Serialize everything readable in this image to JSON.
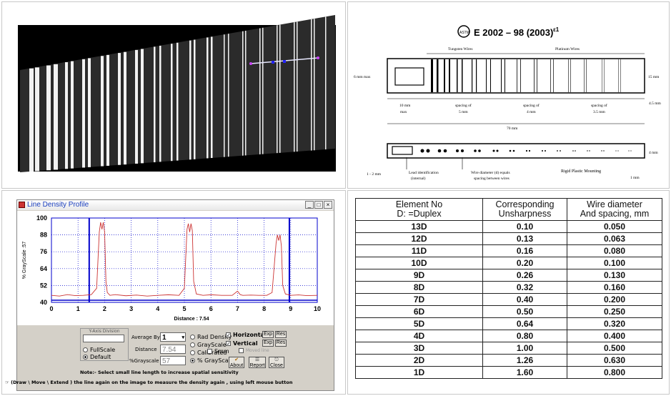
{
  "standard": {
    "title": "E 2002 – 98 (2003)",
    "superscript": "ε1",
    "logo_text": "ASTM",
    "labels": {
      "tungsten": "Tungsten Wires",
      "platinum": "Platinum Wires",
      "six_mm": "6 mm max",
      "fifteen_mm": "15 mm",
      "four5_mm": "4.5 mm",
      "ten_mm": "10 mm",
      "ten_mm_max": "max",
      "spacing1a": "spacing of",
      "spacing1b": "5 mm",
      "spacing2a": "spacing of",
      "spacing2b": "4 mm",
      "spacing3a": "spacing of",
      "spacing3b": "3.5 mm",
      "seventy_mm": "70 mm",
      "four_mm": "4 mm",
      "one2_mm": "1 - 2 mm",
      "lead_id": "Lead identification",
      "lead_id2": "(internal)",
      "wire_diam": "Wire diameter (d) equals",
      "wire_diam2": "spacing between wires",
      "rigid": "Rigid Plastic Mounting",
      "one_mm": "1 mm"
    }
  },
  "density_window": {
    "title": "Line Density Profile",
    "min_btn": "_",
    "max_btn": "□",
    "close_btn": "×",
    "y_axis_label": "% GrayScale :57",
    "distance_label": "Distance : 7.54",
    "yaxis_division_label": "Y-Axis Division",
    "average_by_label": "Average By",
    "average_by_value": "1",
    "distance_field_label": "Distance",
    "distance_value": "7.54",
    "grayscale_field_label": "%Grayscale",
    "grayscale_value": "57",
    "fullscale": "FullScale",
    "default": "Default",
    "rad_density": "Rad Density",
    "grayscale_opt": "GrayScale",
    "calibrated": "Calibrated",
    "pct_grayscale": "% GrayScale",
    "horizontal": "Horizontal",
    "vertical": "Vertical",
    "smm": "Smm",
    "moved_line": "Moved line",
    "exp": "Exp",
    "res": "Res",
    "about": "About",
    "report": "Report",
    "close": "Close",
    "note": "Note:- Select small line length to increase spatial sensitivity",
    "status": "(Draw \\ Move \\ Extend )  the line again on the image to measure the density again , using left mouse button"
  },
  "chart_data": {
    "type": "line",
    "title": "",
    "xlabel": "Distance : 7.54",
    "ylabel": "% GrayScale :57",
    "xlim": [
      0,
      10
    ],
    "ylim": [
      40,
      100
    ],
    "xticks": [
      "0",
      "1",
      "2",
      "3",
      "4",
      "5",
      "6",
      "7",
      "8",
      "9",
      "10"
    ],
    "yticks": [
      "40",
      "52",
      "64",
      "76",
      "88",
      "100"
    ],
    "markers_x": [
      1.42,
      8.95
    ],
    "baseline_y": 41.5,
    "series": [
      {
        "x": [
          0,
          0.3,
          0.6,
          0.9,
          1.2,
          1.5,
          1.7,
          1.8,
          1.85,
          1.9,
          1.95,
          2.0,
          2.05,
          2.1,
          2.2,
          2.4,
          2.8,
          3.2,
          3.6,
          4.0,
          4.4,
          4.8,
          5.0,
          5.1,
          5.15,
          5.2,
          5.25,
          5.3,
          5.35,
          5.45,
          5.7,
          6.0,
          6.4,
          6.8,
          7.0,
          7.1,
          7.2,
          7.5,
          7.8,
          8.1,
          8.3,
          8.45,
          8.5,
          8.55,
          8.6,
          8.65,
          8.7,
          8.8,
          9.0,
          9.3,
          9.6,
          10
        ],
        "y": [
          45,
          44.5,
          45.5,
          44.8,
          45,
          45.5,
          50,
          90,
          97,
          92,
          97,
          90,
          55,
          47,
          45,
          45.5,
          44.7,
          45.2,
          44.5,
          45,
          45.4,
          45,
          50,
          92,
          96,
          90,
          96,
          91,
          55,
          46,
          45,
          45.4,
          45,
          45,
          48,
          45.5,
          45,
          45.2,
          45,
          45,
          47,
          82,
          88,
          84,
          88,
          80,
          52,
          46,
          45,
          45.3,
          44.8,
          45
        ]
      }
    ]
  },
  "table": {
    "headers": [
      [
        "Element No",
        "D: =Duplex"
      ],
      [
        "Corresponding",
        "Unsharpness"
      ],
      [
        "Wire diameter",
        "And spacing, mm"
      ]
    ],
    "rows": [
      [
        "13D",
        "0.10",
        "0.050"
      ],
      [
        "12D",
        "0.13",
        "0.063"
      ],
      [
        "11D",
        "0.16",
        "0.080"
      ],
      [
        "10D",
        "0.20",
        "0.100"
      ],
      [
        "9D",
        "0.26",
        "0.130"
      ],
      [
        "8D",
        "0.32",
        "0.160"
      ],
      [
        "7D",
        "0.40",
        "0.200"
      ],
      [
        "6D",
        "0.50",
        "0.250"
      ],
      [
        "5D",
        "0.64",
        "0.320"
      ],
      [
        "4D",
        "0.80",
        "0.400"
      ],
      [
        "3D",
        "1.00",
        "0.500"
      ],
      [
        "2D",
        "1.26",
        "0.630"
      ],
      [
        "1D",
        "1.60",
        "0.800"
      ]
    ]
  }
}
